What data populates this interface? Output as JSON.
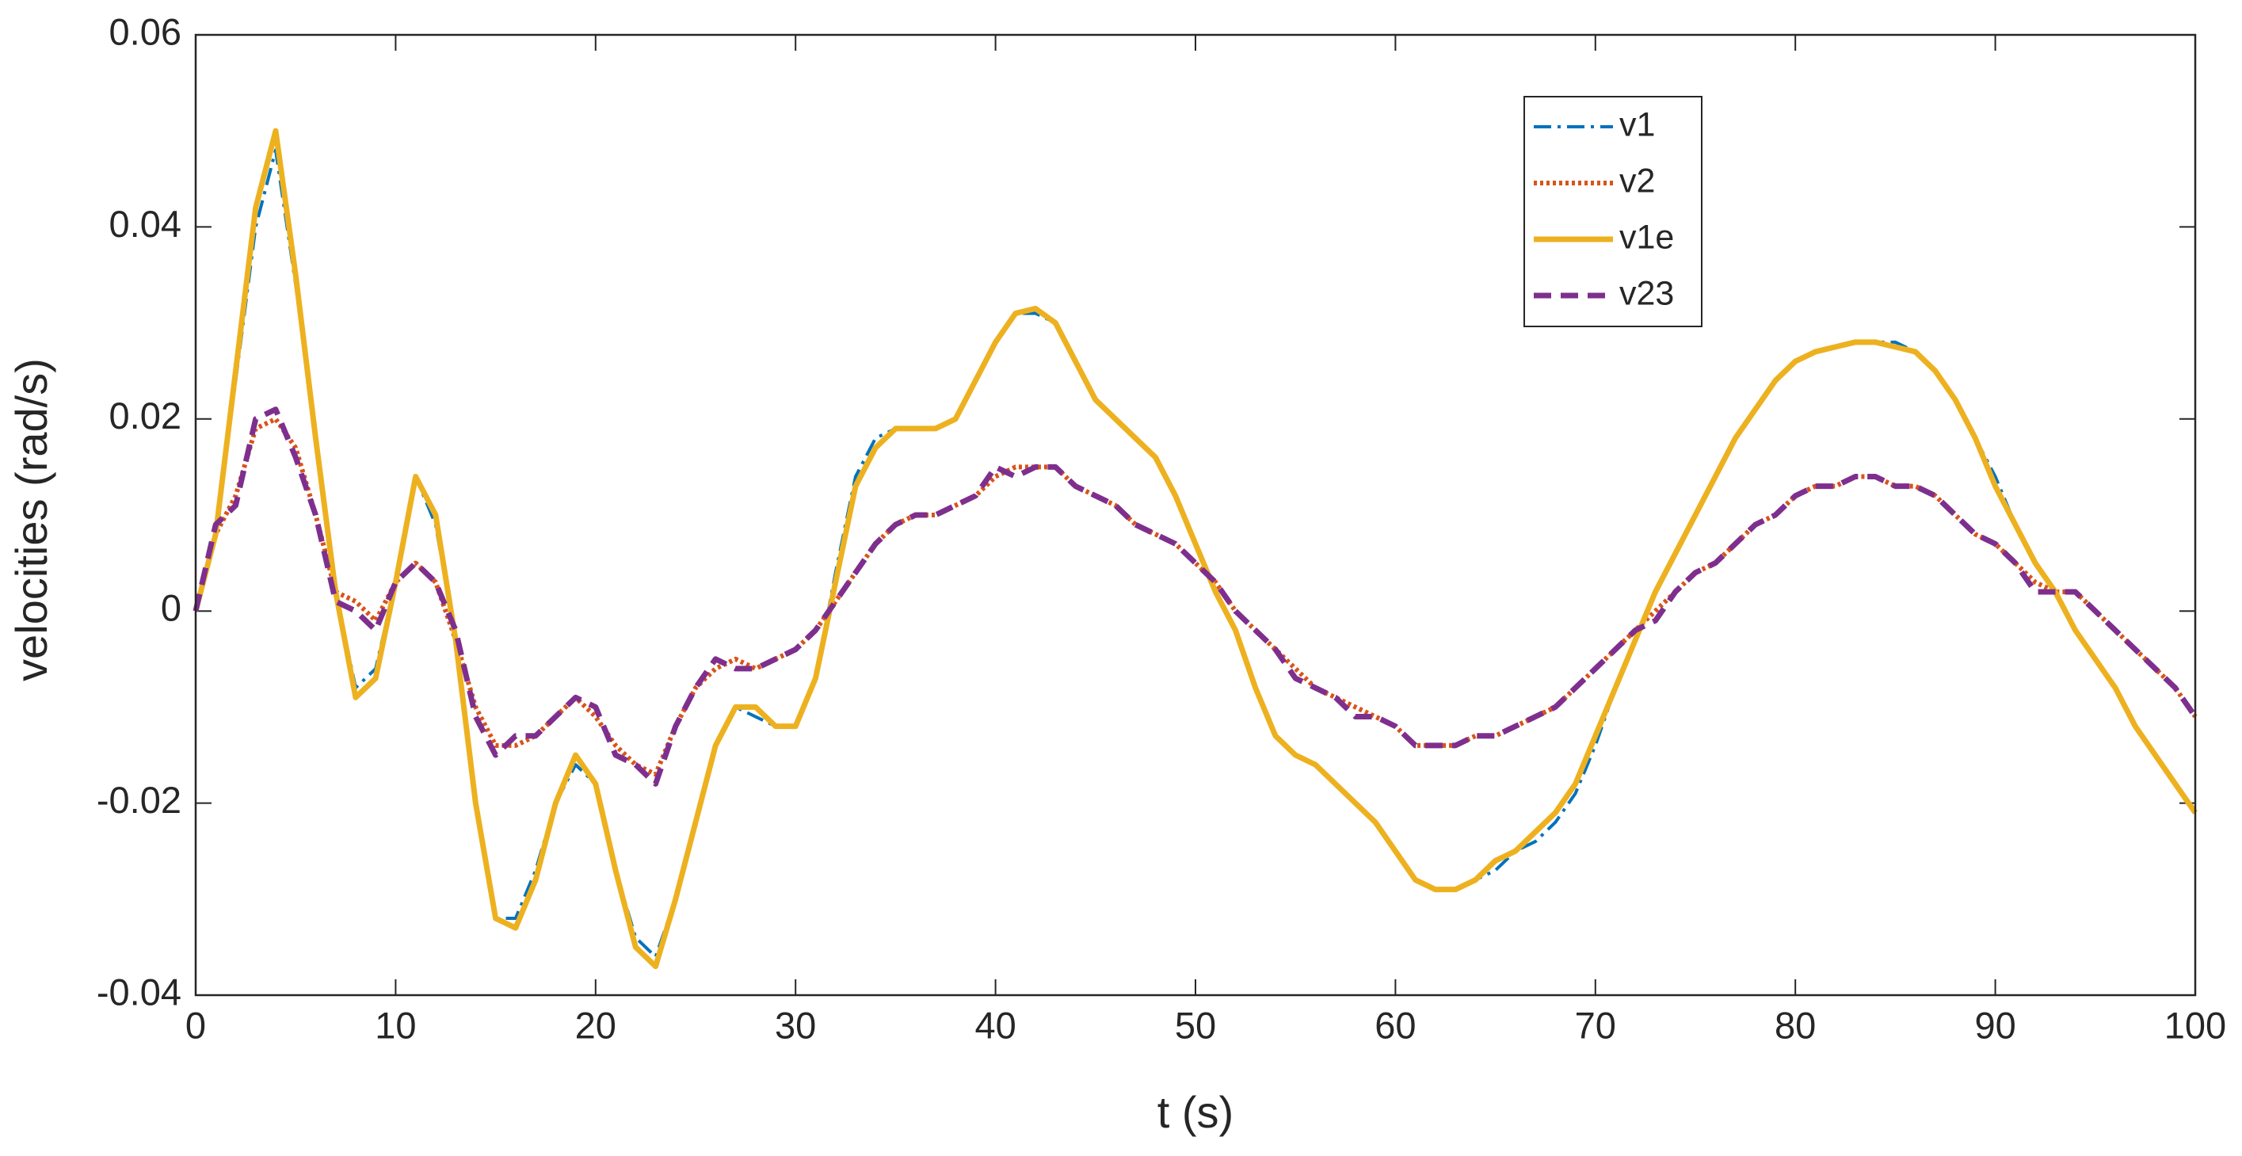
{
  "chart_data": {
    "type": "line",
    "x_label": "t (s)",
    "y_label": "velocities (rad/s)",
    "xlim": [
      0,
      100
    ],
    "xticks": [
      0,
      10,
      20,
      30,
      40,
      50,
      60,
      70,
      80,
      90,
      100
    ],
    "ylim": [
      -0.04,
      0.06
    ],
    "yticks": [
      -0.04,
      -0.02,
      0,
      0.02,
      0.04,
      0.06
    ],
    "legend": "upper right",
    "x": [
      0,
      1,
      2,
      3,
      4,
      5,
      6,
      7,
      8,
      9,
      10,
      11,
      12,
      13,
      14,
      15,
      16,
      17,
      18,
      19,
      20,
      21,
      22,
      23,
      24,
      25,
      26,
      27,
      28,
      29,
      30,
      31,
      32,
      33,
      34,
      35,
      36,
      37,
      38,
      39,
      40,
      41,
      42,
      43,
      44,
      45,
      46,
      47,
      48,
      49,
      50,
      51,
      52,
      53,
      54,
      55,
      56,
      57,
      58,
      59,
      60,
      61,
      62,
      63,
      64,
      65,
      66,
      67,
      68,
      69,
      70,
      71,
      72,
      73,
      74,
      75,
      76,
      77,
      78,
      79,
      80,
      81,
      82,
      83,
      84,
      85,
      86,
      87,
      88,
      89,
      90,
      91,
      92,
      93,
      94,
      95,
      96,
      97,
      98,
      99,
      100
    ],
    "series": [
      {
        "name": "v1",
        "color": "#0072bd",
        "line_style": "dashdot",
        "values": [
          0,
          0.008,
          0.024,
          0.04,
          0.048,
          0.034,
          0.018,
          0.002,
          -0.008,
          -0.006,
          0.003,
          0.014,
          0.009,
          -0.003,
          -0.02,
          -0.032,
          -0.032,
          -0.027,
          -0.02,
          -0.016,
          -0.018,
          -0.027,
          -0.034,
          -0.036,
          -0.03,
          -0.022,
          -0.014,
          -0.01,
          -0.011,
          -0.012,
          -0.012,
          -0.007,
          0.004,
          0.014,
          0.018,
          0.019,
          0.019,
          0.019,
          0.02,
          0.024,
          0.028,
          0.031,
          0.031,
          0.03,
          0.026,
          0.022,
          0.02,
          0.018,
          0.016,
          0.012,
          0.007,
          0.002,
          -0.002,
          -0.008,
          -0.013,
          -0.015,
          -0.016,
          -0.018,
          -0.02,
          -0.022,
          -0.025,
          -0.028,
          -0.029,
          -0.029,
          -0.028,
          -0.027,
          -0.025,
          -0.024,
          -0.022,
          -0.019,
          -0.014,
          -0.008,
          -0.003,
          0.002,
          0.006,
          0.01,
          0.014,
          0.018,
          0.021,
          0.024,
          0.026,
          0.027,
          0.0275,
          0.028,
          0.028,
          0.028,
          0.027,
          0.025,
          0.022,
          0.018,
          0.014,
          0.009,
          0.005,
          0.002,
          -0.002,
          -0.005,
          -0.008,
          -0.012,
          -0.015,
          -0.018,
          -0.021
        ]
      },
      {
        "name": "v2",
        "color": "#d95319",
        "line_style": "dotted",
        "values": [
          0,
          0.008,
          0.012,
          0.019,
          0.02,
          0.017,
          0.01,
          0.002,
          0.001,
          -0.001,
          0.003,
          0.005,
          0.003,
          -0.003,
          -0.01,
          -0.014,
          -0.014,
          -0.013,
          -0.011,
          -0.009,
          -0.011,
          -0.014,
          -0.016,
          -0.017,
          -0.012,
          -0.008,
          -0.006,
          -0.005,
          -0.006,
          -0.005,
          -0.004,
          -0.002,
          0.001,
          0.004,
          0.007,
          0.009,
          0.01,
          0.01,
          0.011,
          0.012,
          0.014,
          0.015,
          0.015,
          0.015,
          0.013,
          0.012,
          0.011,
          0.009,
          0.008,
          0.007,
          0.005,
          0.003,
          0.0,
          -0.002,
          -0.004,
          -0.006,
          -0.008,
          -0.009,
          -0.01,
          -0.011,
          -0.012,
          -0.014,
          -0.014,
          -0.014,
          -0.013,
          -0.013,
          -0.012,
          -0.011,
          -0.01,
          -0.008,
          -0.006,
          -0.004,
          -0.002,
          0,
          0.002,
          0.004,
          0.005,
          0.007,
          0.009,
          0.01,
          0.012,
          0.013,
          0.013,
          0.014,
          0.014,
          0.013,
          0.013,
          0.012,
          0.01,
          0.008,
          0.007,
          0.005,
          0.003,
          0.002,
          0.002,
          0.0,
          -0.002,
          -0.004,
          -0.006,
          -0.008,
          -0.011
        ]
      },
      {
        "name": "v1e",
        "color": "#edb120",
        "line_style": "solid",
        "values": [
          0,
          0.008,
          0.025,
          0.042,
          0.05,
          0.035,
          0.018,
          0.002,
          -0.009,
          -0.007,
          0.003,
          0.014,
          0.01,
          -0.003,
          -0.02,
          -0.032,
          -0.033,
          -0.028,
          -0.02,
          -0.015,
          -0.018,
          -0.027,
          -0.035,
          -0.037,
          -0.03,
          -0.022,
          -0.014,
          -0.01,
          -0.01,
          -0.012,
          -0.012,
          -0.007,
          0.003,
          0.013,
          0.017,
          0.019,
          0.019,
          0.019,
          0.02,
          0.024,
          0.028,
          0.031,
          0.0315,
          0.03,
          0.026,
          0.022,
          0.02,
          0.018,
          0.016,
          0.012,
          0.007,
          0.002,
          -0.002,
          -0.008,
          -0.013,
          -0.015,
          -0.016,
          -0.018,
          -0.02,
          -0.022,
          -0.025,
          -0.028,
          -0.029,
          -0.029,
          -0.028,
          -0.026,
          -0.025,
          -0.023,
          -0.021,
          -0.018,
          -0.013,
          -0.008,
          -0.003,
          0.002,
          0.006,
          0.01,
          0.014,
          0.018,
          0.021,
          0.024,
          0.026,
          0.027,
          0.0275,
          0.028,
          0.028,
          0.0275,
          0.027,
          0.025,
          0.022,
          0.018,
          0.013,
          0.009,
          0.005,
          0.002,
          -0.002,
          -0.005,
          -0.008,
          -0.012,
          -0.015,
          -0.018,
          -0.021
        ]
      },
      {
        "name": "v23",
        "color": "#7e2f8e",
        "line_style": "dashed",
        "values": [
          0,
          0.009,
          0.011,
          0.02,
          0.021,
          0.016,
          0.01,
          0.001,
          0.0,
          -0.002,
          0.003,
          0.005,
          0.003,
          -0.002,
          -0.011,
          -0.015,
          -0.013,
          -0.013,
          -0.011,
          -0.009,
          -0.01,
          -0.015,
          -0.016,
          -0.018,
          -0.012,
          -0.008,
          -0.005,
          -0.006,
          -0.006,
          -0.005,
          -0.004,
          -0.002,
          0.001,
          0.004,
          0.007,
          0.009,
          0.01,
          0.01,
          0.011,
          0.012,
          0.015,
          0.014,
          0.015,
          0.015,
          0.013,
          0.012,
          0.011,
          0.009,
          0.008,
          0.007,
          0.005,
          0.003,
          0.0,
          -0.002,
          -0.004,
          -0.007,
          -0.008,
          -0.009,
          -0.011,
          -0.011,
          -0.012,
          -0.014,
          -0.014,
          -0.014,
          -0.013,
          -0.013,
          -0.012,
          -0.011,
          -0.01,
          -0.008,
          -0.006,
          -0.004,
          -0.002,
          -0.001,
          0.002,
          0.004,
          0.005,
          0.007,
          0.009,
          0.01,
          0.012,
          0.013,
          0.013,
          0.014,
          0.014,
          0.013,
          0.013,
          0.012,
          0.01,
          0.008,
          0.007,
          0.005,
          0.002,
          0.002,
          0.002,
          0.0,
          -0.002,
          -0.004,
          -0.006,
          -0.008,
          -0.011
        ]
      }
    ]
  }
}
